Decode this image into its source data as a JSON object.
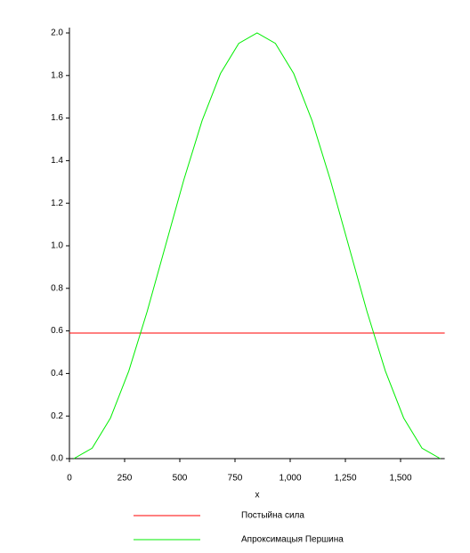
{
  "chart_data": {
    "type": "line",
    "xlabel": "x",
    "xlim": [
      0,
      1700
    ],
    "ylim": [
      0,
      2.0
    ],
    "xticks": [
      0,
      250,
      500,
      750,
      {
        "value": 1000,
        "label": "1,000"
      },
      {
        "value": 1250,
        "label": "1,250"
      },
      {
        "value": 1500,
        "label": "1,500"
      }
    ],
    "yticks": [
      {
        "value": 0,
        "label": "0.0"
      },
      0.2,
      0.4,
      0.6,
      0.8,
      {
        "value": 1,
        "label": "1.0"
      },
      1.2,
      1.4,
      1.6,
      1.8,
      {
        "value": 2,
        "label": "2.0"
      }
    ],
    "series": [
      {
        "name": "Постыйна сила",
        "color": "#ff0000",
        "x": [
          0,
          1700
        ],
        "values": [
          0.59,
          0.59
        ]
      },
      {
        "name": "Апроксимацыя Першина",
        "color": "#00ee00",
        "x": [
          20,
          103,
          186,
          269,
          352,
          435,
          518,
          601,
          684,
          767,
          850,
          933,
          1016,
          1099,
          1182,
          1265,
          1348,
          1431,
          1514,
          1597,
          1680
        ],
        "values": [
          0,
          0.049,
          0.191,
          0.412,
          0.691,
          1,
          1.309,
          1.588,
          1.809,
          1.951,
          2,
          1.951,
          1.809,
          1.588,
          1.309,
          1,
          0.691,
          0.412,
          0.191,
          0.049,
          0
        ]
      }
    ]
  }
}
